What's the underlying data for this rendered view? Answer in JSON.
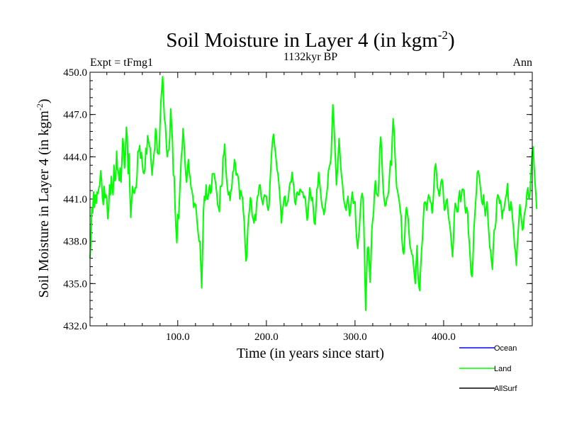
{
  "chart_data": {
    "type": "line",
    "title": "Soil Moisture in Layer 4 (in kgm",
    "title_sup": "-2",
    "title_close": ")",
    "subtitle": "1132kyr BP",
    "left_label": "Expt = tFmg1",
    "right_label": "Ann",
    "xlabel": "Time (in years since start)",
    "ylabel": "Soil Moisture in Layer 4 (in kgm",
    "ylabel_sup": "-2",
    "ylabel_close": ")",
    "xlim": [
      1,
      500
    ],
    "ylim": [
      432.0,
      450.0
    ],
    "x_ticks": [
      100,
      200,
      300,
      400
    ],
    "x_tick_labels": [
      "100.0",
      "200.0",
      "300.0",
      "400.0"
    ],
    "y_ticks": [
      432,
      435,
      438,
      441,
      444,
      447,
      450
    ],
    "y_tick_labels": [
      "432.0",
      "435.0",
      "438.0",
      "441.0",
      "444.0",
      "447.0",
      "450.0"
    ],
    "legend": [
      {
        "name": "Ocean",
        "color": "#0000ff"
      },
      {
        "name": "Land",
        "color": "#00ff00"
      },
      {
        "name": "AllSurf",
        "color": "#000000"
      }
    ],
    "series": [
      {
        "name": "Land",
        "color": "#00ff00",
        "x_start": 1,
        "x_step": 1,
        "values": [
          436.8,
          438.0,
          440.3,
          440.0,
          441.5,
          440.4,
          441.3,
          440.7,
          441.5,
          441.4,
          441.8,
          442.0,
          443.0,
          442.4,
          441.1,
          440.6,
          441.9,
          441.1,
          441.3,
          441.0,
          439.6,
          440.2,
          442.0,
          441.3,
          442.6,
          441.8,
          441.3,
          443.4,
          442.3,
          442.4,
          444.4,
          443.1,
          442.9,
          442.3,
          443.2,
          442.2,
          443.8,
          445.3,
          444.6,
          443.2,
          444.3,
          446.1,
          445.4,
          442.8,
          444.2,
          441.5,
          439.7,
          440.9,
          441.9,
          441.5,
          441.4,
          441.8,
          441.8,
          442.6,
          444.4,
          444.4,
          444.8,
          443.9,
          444.3,
          443.5,
          442.9,
          442.8,
          443.2,
          444.6,
          444.2,
          445.5,
          445.1,
          444.8,
          444.6,
          443.6,
          442.7,
          443.5,
          444.1,
          444.6,
          446.0,
          445.6,
          444.3,
          444.2,
          444.2,
          446.3,
          447.9,
          448.8,
          449.7,
          448.0,
          446.7,
          446.3,
          445.1,
          444.0,
          444.4,
          444.5,
          445.4,
          447.4,
          446.3,
          445.2,
          442.7,
          442.6,
          440.4,
          438.9,
          437.9,
          439.9,
          439.6,
          441.1,
          442.6,
          444.0,
          444.6,
          446.0,
          445.1,
          443.8,
          442.8,
          442.2,
          443.1,
          443.8,
          442.9,
          442.5,
          441.8,
          441.6,
          441.2,
          440.4,
          440.7,
          440.6,
          440.1,
          439.2,
          438.6,
          438.0,
          438.0,
          436.4,
          434.7,
          437.2,
          440.1,
          441.2,
          440.9,
          442.0,
          441.0,
          441.0,
          441.6,
          442.0,
          441.4,
          441.6,
          442.8,
          442.8,
          442.8,
          442.4,
          442.0,
          441.4,
          440.6,
          440.4,
          440.1,
          441.9,
          441.9,
          442.0,
          443.9,
          444.2,
          444.9,
          443.4,
          442.5,
          441.8,
          441.3,
          441.5,
          440.9,
          441.6,
          441.8,
          442.9,
          443.0,
          443.8,
          443.5,
          442.7,
          442.8,
          442.6,
          442.1,
          441.0,
          441.6,
          441.3,
          441.1,
          440.1,
          439.4,
          437.8,
          436.6,
          437.0,
          438.9,
          439.7,
          440.3,
          441.1,
          440.8,
          439.8,
          439.6,
          439.3,
          439.9,
          439.5,
          440.7,
          441.2,
          441.3,
          442.0,
          442.0,
          441.2,
          440.9,
          440.6,
          441.1,
          441.3,
          441.2,
          441.2,
          440.5,
          440.2,
          440.5,
          442.0,
          443.2,
          444.4,
          445.2,
          445.6,
          445.0,
          444.4,
          443.8,
          443.1,
          442.8,
          442.2,
          441.4,
          440.5,
          439.3,
          440.2,
          440.5,
          441.1,
          441.2,
          440.5,
          440.6,
          440.8,
          441.2,
          441.9,
          442.2,
          442.2,
          442.9,
          442.3,
          441.8,
          440.8,
          440.6,
          441.4,
          441.5,
          441.3,
          441.3,
          441.7,
          441.6,
          441.5,
          441.5,
          441.1,
          441.2,
          441.0,
          440.2,
          439.5,
          440.0,
          441.0,
          441.8,
          441.3,
          440.9,
          441.1,
          440.2,
          439.3,
          439.2,
          440.4,
          441.7,
          441.9,
          442.9,
          442.2,
          441.6,
          440.9,
          440.4,
          440.3,
          439.9,
          440.3,
          440.9,
          441.3,
          441.9,
          443.0,
          443.3,
          443.5,
          444.0,
          445.9,
          447.7,
          446.6,
          445.2,
          443.7,
          442.0,
          442.9,
          444.0,
          445.3,
          444.2,
          443.2,
          442.5,
          442.0,
          441.1,
          440.7,
          440.4,
          440.2,
          440.8,
          441.2,
          440.4,
          439.8,
          440.3,
          441.0,
          441.5,
          440.7,
          440.8,
          440.8,
          439.1,
          438.1,
          437.5,
          438.3,
          439.0,
          440.2,
          441.1,
          441.4,
          441.0,
          439.1,
          436.1,
          433.1,
          435.4,
          437.5,
          437.6,
          436.6,
          435.1,
          436.7,
          438.9,
          439.5,
          440.1,
          441.6,
          442.3,
          441.4,
          441.3,
          441.2,
          442.4,
          444.6,
          445.4,
          444.5,
          442.7,
          441.5,
          440.9,
          440.5,
          440.6,
          441.1,
          441.2,
          441.6,
          442.8,
          443.7,
          443.4,
          445.3,
          446.7,
          445.9,
          444.3,
          443.0,
          441.8,
          441.6,
          441.2,
          440.8,
          440.2,
          439.8,
          438.1,
          437.3,
          437.1,
          438.2,
          439.8,
          440.4,
          440.0,
          439.6,
          438.5,
          437.7,
          437.4,
          437.1,
          437.0,
          436.3,
          435.6,
          435.0,
          436.4,
          437.7,
          435.7,
          434.8,
          434.5,
          436.0,
          437.3,
          438.1,
          439.5,
          440.7,
          440.8,
          440.7,
          440.2,
          440.9,
          441.3,
          441.1,
          440.8,
          440.7,
          440.0,
          440.7,
          441.9,
          443.2,
          443.5,
          442.8,
          441.8,
          441.6,
          441.2,
          441.6,
          442.2,
          442.4,
          442.1,
          440.9,
          440.2,
          440.4,
          440.9,
          441.0,
          440.0,
          439.5,
          439.1,
          438.5,
          437.7,
          436.9,
          438.0,
          439.8,
          440.7,
          440.5,
          440.1,
          440.1,
          441.1,
          441.6,
          440.8,
          441.2,
          441.7,
          441.7,
          441.6,
          440.4,
          440.0,
          440.4,
          440.1,
          438.6,
          437.9,
          436.8,
          435.7,
          435.5,
          436.6,
          438.7,
          439.7,
          440.7,
          441.6,
          442.9,
          443.0,
          442.7,
          442.1,
          441.5,
          440.8,
          440.6,
          441.3,
          440.5,
          439.8,
          440.4,
          440.8,
          439.6,
          438.6,
          437.6,
          437.3,
          436.6,
          436.0,
          437.6,
          438.8,
          438.9,
          439.4,
          440.9,
          441.3,
          441.2,
          440.7,
          440.9,
          440.5,
          439.6,
          440.2,
          440.2,
          440.7,
          441.1,
          441.4,
          442.1,
          441.0,
          440.2,
          440.2,
          440.8,
          440.2,
          439.4,
          438.8,
          437.6,
          437.3,
          436.3,
          437.6,
          438.6,
          439.6,
          440.6,
          440.0,
          439.4,
          438.8,
          439.0,
          439.9,
          440.2,
          440.6,
          441.5,
          441.8,
          441.0,
          441.1,
          442.1,
          443.4,
          444.3,
          444.7,
          443.4,
          442.3,
          441.4,
          440.3
        ]
      }
    ]
  }
}
